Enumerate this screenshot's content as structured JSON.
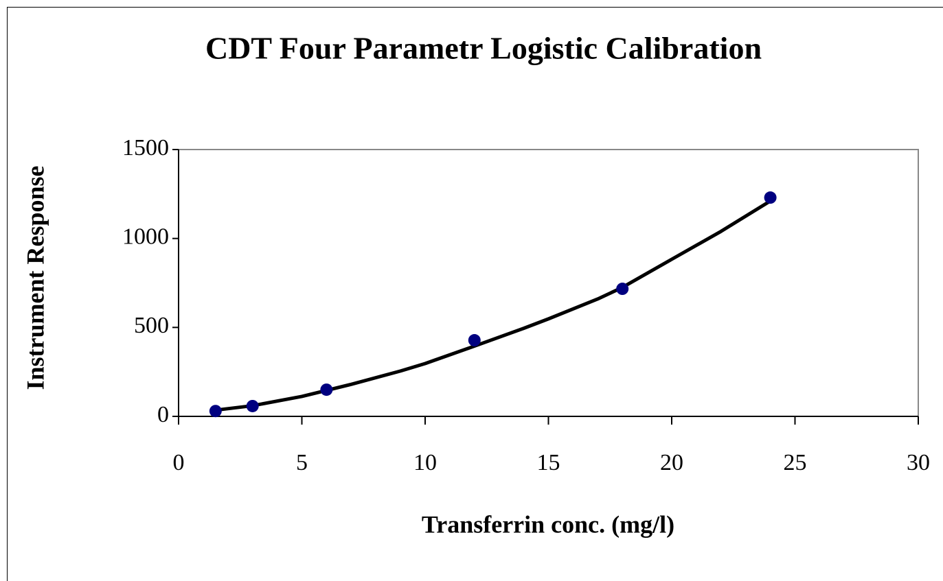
{
  "chart_data": {
    "type": "scatter",
    "title": "CDT Four Parametr Logistic Calibration",
    "x_label": "Transferrin conc. (mg/l)",
    "y_label": "Instrument Response",
    "xlim": [
      0,
      30
    ],
    "xticks": [
      0,
      5,
      10,
      15,
      20,
      25,
      30
    ],
    "ylim": [
      0,
      1500
    ],
    "yticks": [
      0,
      500,
      1000,
      1500
    ],
    "grid": false,
    "series": [
      {
        "style": "line",
        "color": "#000000",
        "x": [
          1.5,
          3,
          5,
          7,
          9,
          10,
          12,
          14,
          15,
          17,
          18,
          20,
          22,
          24
        ],
        "values": [
          35,
          60,
          112,
          180,
          255,
          297,
          395,
          495,
          548,
          660,
          725,
          883,
          1040,
          1211
        ]
      },
      {
        "style": "markers",
        "color": "#000080",
        "x": [
          1.5,
          3,
          6,
          12,
          18,
          24
        ],
        "values": [
          30,
          58,
          150,
          428,
          717,
          1230
        ]
      }
    ]
  }
}
